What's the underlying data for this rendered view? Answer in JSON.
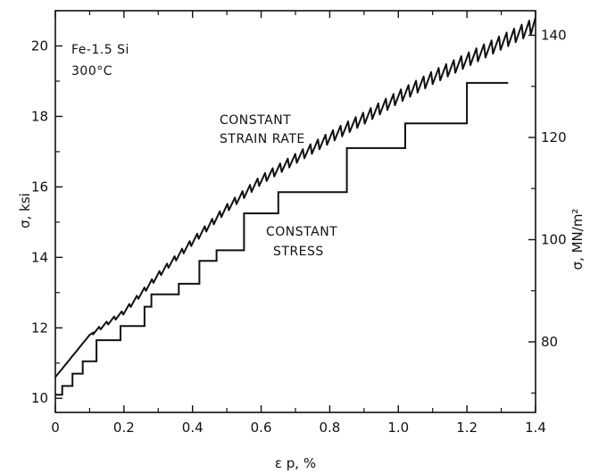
{
  "chart_data": {
    "type": "line",
    "title": "",
    "xlabel": "ε p, %",
    "ylabel": "σ, ksi",
    "y2label": "σ, MN/m²",
    "xlim": [
      0,
      1.4
    ],
    "ylim": [
      9.6,
      21
    ],
    "y2lim": [
      66.2,
      144.8
    ],
    "x_ticks": [
      "0",
      "0.2",
      "0.4",
      "0.6",
      "0.8",
      "1.0",
      "1.2",
      "1.4"
    ],
    "y_ticks": [
      "10",
      "12",
      "14",
      "16",
      "18",
      "20"
    ],
    "y2_ticks": [
      "80",
      "100",
      "120",
      "140"
    ],
    "annotations": {
      "material": "Fe-1.5 Si",
      "temperature": "300°C",
      "csr_line1": "CONSTANT",
      "csr_line2": "STRAIN RATE",
      "cs_line1": "CONSTANT",
      "cs_line2": "STRESS"
    },
    "series": [
      {
        "label": "CONSTANT STRAIN RATE",
        "base_points": [
          [
            0,
            10.6
          ],
          [
            0.1,
            11.8
          ],
          [
            0.2,
            12.45
          ],
          [
            0.3,
            13.5
          ],
          [
            0.4,
            14.45
          ],
          [
            0.5,
            15.4
          ],
          [
            0.6,
            16.2
          ],
          [
            0.7,
            16.8
          ],
          [
            0.8,
            17.4
          ],
          [
            0.9,
            17.95
          ],
          [
            1.0,
            18.55
          ],
          [
            1.1,
            19.1
          ],
          [
            1.2,
            19.6
          ],
          [
            1.3,
            20.1
          ],
          [
            1.4,
            20.6
          ]
        ],
        "serration_start": 0.11,
        "serration_period": 0.022,
        "serration_amplitude": [
          [
            0.11,
            0.1
          ],
          [
            0.45,
            0.2
          ],
          [
            0.8,
            0.32
          ],
          [
            1.4,
            0.42
          ]
        ]
      },
      {
        "label": "CONSTANT STRESS",
        "steps": [
          [
            0,
            10.1
          ],
          [
            0.02,
            10.35
          ],
          [
            0.05,
            10.7
          ],
          [
            0.08,
            11.05
          ],
          [
            0.12,
            11.65
          ],
          [
            0.19,
            12.05
          ],
          [
            0.26,
            12.6
          ],
          [
            0.28,
            12.95
          ],
          [
            0.36,
            13.25
          ],
          [
            0.42,
            13.9
          ],
          [
            0.47,
            14.2
          ],
          [
            0.55,
            15.25
          ],
          [
            0.65,
            15.85
          ],
          [
            0.85,
            17.1
          ],
          [
            1.02,
            17.8
          ],
          [
            1.2,
            18.95
          ],
          [
            1.32,
            18.95
          ]
        ]
      }
    ]
  }
}
